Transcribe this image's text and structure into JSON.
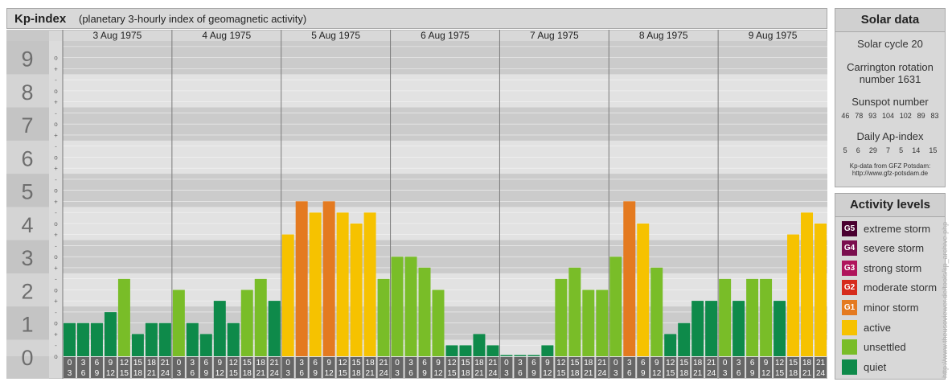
{
  "header": {
    "title": "Kp-index",
    "subtitle": "(planetary 3-hourly index of geomagnetic activity)"
  },
  "solar": {
    "heading": "Solar data",
    "cycle": "Solar cycle 20",
    "carrington_1": "Carrington rotation",
    "carrington_2": "number 1631",
    "sunspot_heading": "Sunspot number",
    "sunspot_values": [
      "46",
      "78",
      "93",
      "104",
      "102",
      "89",
      "83"
    ],
    "ap_heading": "Daily Ap-index",
    "ap_values": [
      "5",
      "6",
      "29",
      "7",
      "5",
      "14",
      "15"
    ],
    "source_1": "Kp-data from GFZ Potsdam:",
    "source_2": "http://www.gfz-potsdam.de"
  },
  "legend": {
    "heading": "Activity levels",
    "items": [
      {
        "code": "G5",
        "label": "extreme storm",
        "color": "#4a0030"
      },
      {
        "code": "G4",
        "label": "severe storm",
        "color": "#7a0e4e"
      },
      {
        "code": "G3",
        "label": "strong storm",
        "color": "#b0145c"
      },
      {
        "code": "G2",
        "label": "moderate storm",
        "color": "#d62b1c"
      },
      {
        "code": "G1",
        "label": "minor storm",
        "color": "#e47a20"
      },
      {
        "code": "",
        "label": "active",
        "color": "#f6c200"
      },
      {
        "code": "",
        "label": "unsettled",
        "color": "#79bd28"
      },
      {
        "code": "",
        "label": "quiet",
        "color": "#0e8a4a"
      }
    ]
  },
  "watermark": "http://www.theusoviewer.de/tools/kp_archive.php",
  "chart_data": {
    "type": "bar",
    "y_major_labels": [
      "0",
      "1",
      "2",
      "3",
      "4",
      "5",
      "6",
      "7",
      "8",
      "9"
    ],
    "y_minor_labels": [
      "o",
      "+",
      "-",
      "o",
      "+",
      "-",
      "o",
      "+",
      "-",
      "o",
      "+",
      "-",
      "o",
      "+",
      "-",
      "o",
      "+",
      "-",
      "o",
      "+",
      "-",
      "o",
      "+",
      "-",
      "o",
      "+",
      "-",
      "o"
    ],
    "ylim": [
      0,
      9
    ],
    "days": [
      "3 Aug 1975",
      "4 Aug 1975",
      "5 Aug 1975",
      "6 Aug 1975",
      "7 Aug 1975",
      "8 Aug 1975",
      "9 Aug 1975"
    ],
    "hour_top": [
      "0",
      "3",
      "6",
      "9",
      "12",
      "15",
      "18",
      "21"
    ],
    "hour_bottom": [
      "3",
      "6",
      "9",
      "12",
      "15",
      "18",
      "21",
      "24"
    ],
    "kp": [
      [
        1.0,
        1.0,
        1.0,
        1.33,
        2.33,
        0.67,
        1.0,
        1.0
      ],
      [
        2.0,
        1.0,
        0.67,
        1.67,
        1.0,
        2.0,
        2.33,
        1.67
      ],
      [
        3.67,
        4.67,
        4.33,
        4.67,
        4.33,
        4.0,
        4.33,
        2.33
      ],
      [
        3.0,
        3.0,
        2.67,
        2.0,
        0.33,
        0.33,
        0.67,
        0.33
      ],
      [
        0.0,
        0.0,
        0.0,
        0.33,
        2.33,
        2.67,
        2.0,
        2.0
      ],
      [
        3.0,
        4.67,
        4.0,
        2.67,
        0.67,
        1.0,
        1.67,
        1.67
      ],
      [
        2.33,
        1.67,
        2.33,
        2.33,
        1.67,
        3.67,
        4.33,
        4.0
      ]
    ]
  }
}
